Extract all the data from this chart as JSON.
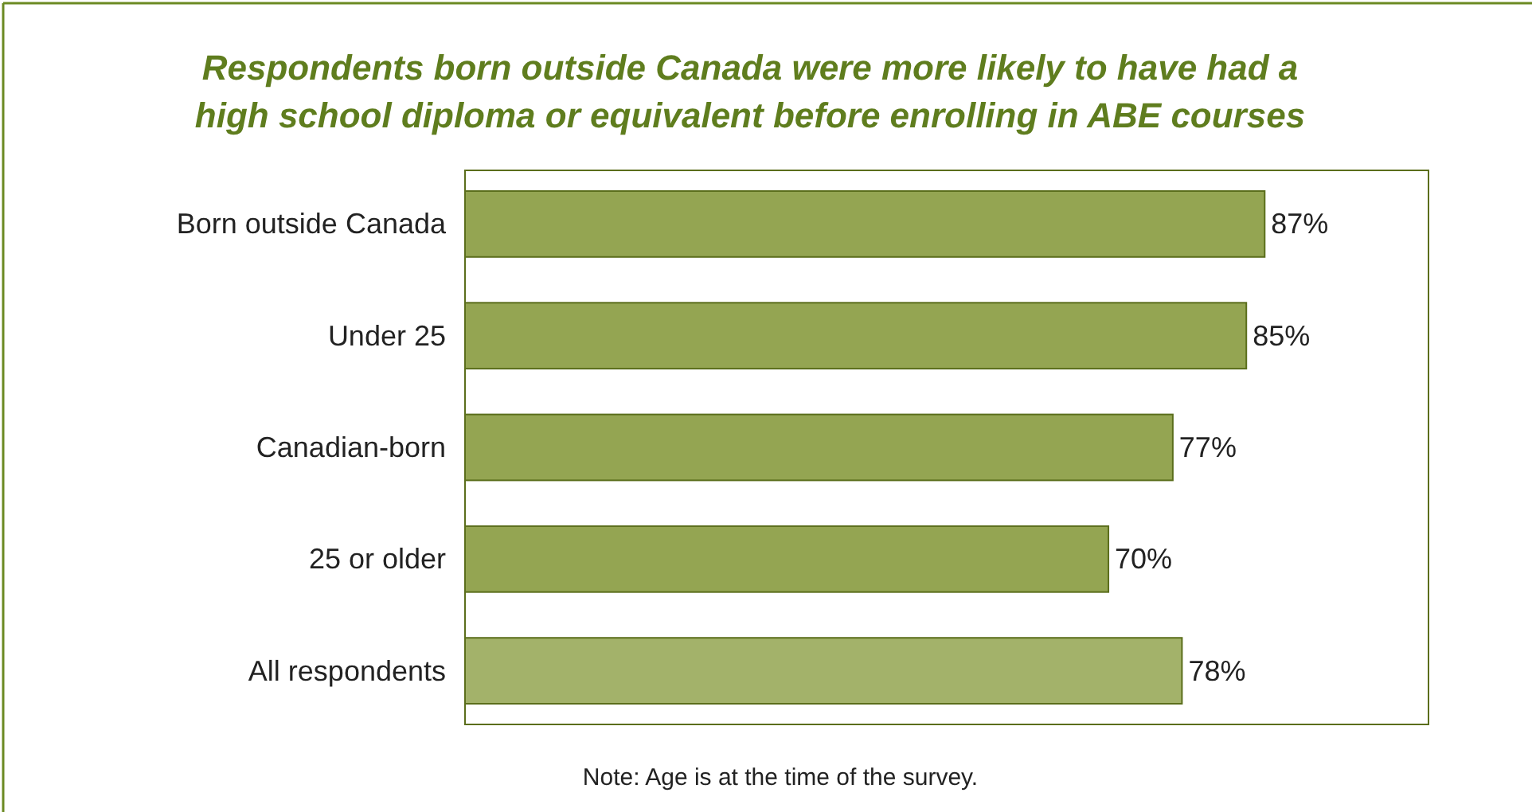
{
  "chart_data": {
    "type": "bar",
    "orientation": "horizontal",
    "title": "Respondents born outside Canada were more likely to have had a\nhigh school diploma or equivalent before enrolling in ABE courses",
    "categories": [
      "Born outside Canada",
      "Under 25",
      "Canadian-born",
      "25 or older",
      "All respondents"
    ],
    "values": [
      87,
      85,
      77,
      70,
      78
    ],
    "value_labels": [
      "87%",
      "85%",
      "77%",
      "70%",
      "78%"
    ],
    "colors": [
      "#94a552",
      "#94a552",
      "#94a552",
      "#94a552",
      "#a3b26a"
    ],
    "annotations": [
      "Note: Age is at the time of the survey."
    ]
  }
}
